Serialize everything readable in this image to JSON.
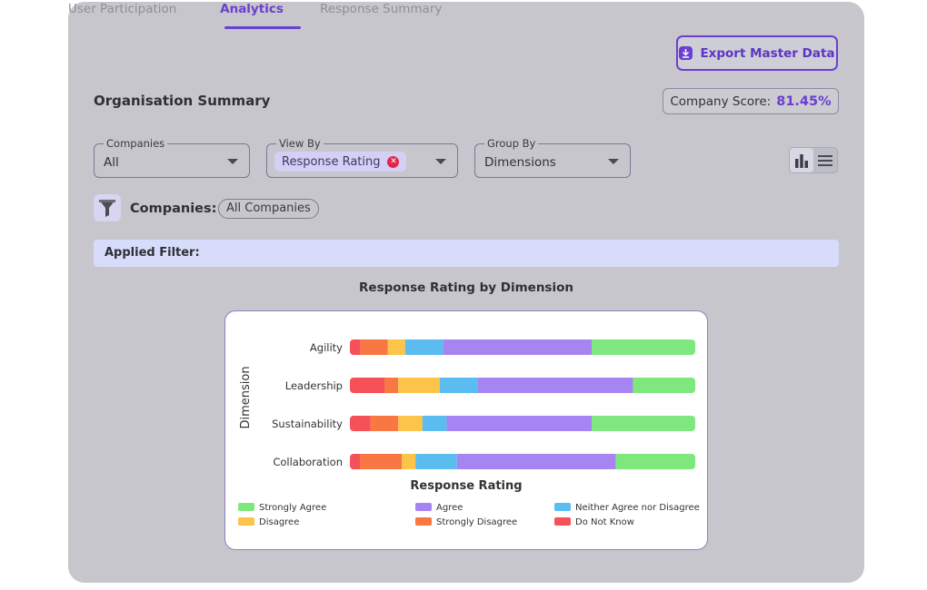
{
  "tabs": [
    {
      "label": "User Participation",
      "active": false
    },
    {
      "label": "Analytics",
      "active": true
    },
    {
      "label": "Response Summary",
      "active": false
    }
  ],
  "export_button": {
    "label": "Export Master Data",
    "icon": "download-icon"
  },
  "page_title": "Organisation Summary",
  "company_score": {
    "label": "Company Score:",
    "value": "81.45%"
  },
  "filters": {
    "companies": {
      "label": "Companies",
      "value": "All"
    },
    "view_by": {
      "label": "View By",
      "chip": "Response Rating"
    },
    "group_by": {
      "label": "Group By",
      "value": "Dimensions"
    }
  },
  "companies_row": {
    "label": "Companies:",
    "chip": "All Companies"
  },
  "applied_filter": {
    "label": "Applied Filter:"
  },
  "colors": {
    "accent": "#6a3fd1",
    "strongly_agree": "#7ee87f",
    "agree": "#a684f2",
    "neither": "#5bbcf0",
    "disagree": "#fcc449",
    "strongly_disagree": "#f87742",
    "do_not_know": "#f65059"
  },
  "chart_data": {
    "type": "bar",
    "orientation": "horizontal",
    "stacked": true,
    "title": "Response Rating by Dimension",
    "xlabel": "Response Rating",
    "ylabel": "Dimension",
    "categories": [
      "Agility",
      "Leadership",
      "Sustainability",
      "Collaboration"
    ],
    "series": [
      {
        "name": "Do Not Know",
        "values": [
          3,
          10,
          6,
          3
        ]
      },
      {
        "name": "Strongly Disagree",
        "values": [
          8,
          4,
          8,
          12
        ]
      },
      {
        "name": "Disagree",
        "values": [
          5,
          12,
          7,
          4
        ]
      },
      {
        "name": "Neither Agree nor Disagree",
        "values": [
          11,
          11,
          7,
          12
        ]
      },
      {
        "name": "Agree",
        "values": [
          43,
          45,
          42,
          46
        ]
      },
      {
        "name": "Strongly Agree",
        "values": [
          30,
          18,
          30,
          23
        ]
      }
    ],
    "xlim": [
      0,
      100
    ],
    "legend": [
      [
        "Strongly Agree",
        "Agree",
        "Neither Agree nor Disagree"
      ],
      [
        "Disagree",
        "Strongly Disagree",
        "Do Not Know"
      ]
    ],
    "legend_position": "bottom",
    "grid": false
  }
}
